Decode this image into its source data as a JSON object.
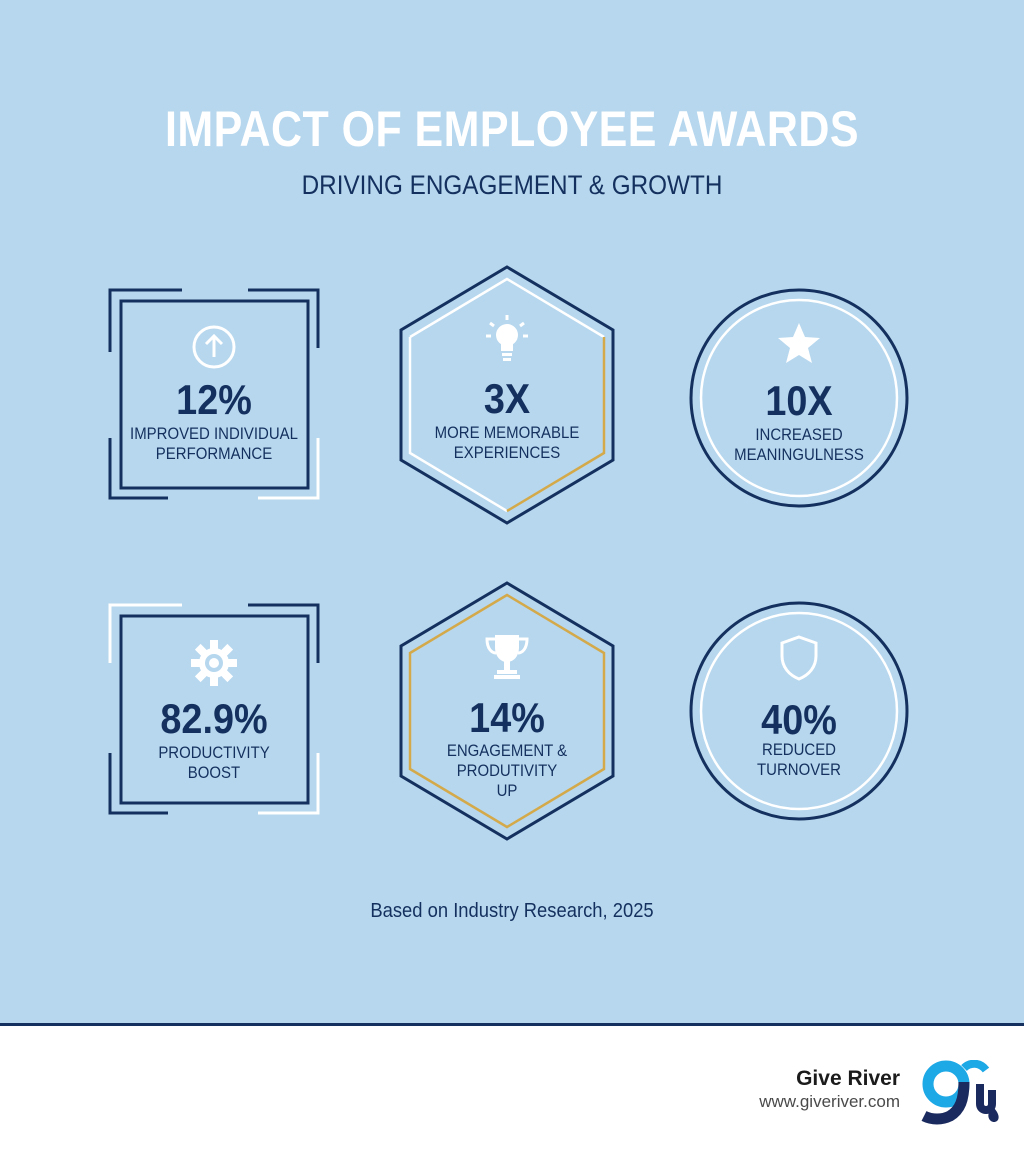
{
  "header": {
    "title": "IMPACT OF EMPLOYEE AWARDS",
    "subtitle": "DRIVING ENGAGEMENT & GROWTH"
  },
  "stats": [
    {
      "value": "12%",
      "label_line1": "IMPROVED INDIVIDUAL",
      "label_line2": "PERFORMANCE",
      "shape": "square",
      "icon": "arrow-up-icon"
    },
    {
      "value": "3X",
      "label_line1": "MORE MEMORABLE",
      "label_line2": "EXPERIENCES",
      "shape": "hexagon",
      "icon": "lightbulb-icon"
    },
    {
      "value": "10X",
      "label_line1": "INCREASED",
      "label_line2": "MEANINGULNESS",
      "shape": "circle",
      "icon": "star-icon"
    },
    {
      "value": "82.9%",
      "label_line1": "PRODUCTIVITY",
      "label_line2": "BOOST",
      "shape": "square",
      "icon": "gear-icon"
    },
    {
      "value": "14%",
      "label_line1": "ENGAGEMENT &",
      "label_line2": "PRODUTIVITY",
      "label_line3": "UP",
      "shape": "hexagon",
      "icon": "trophy-icon"
    },
    {
      "value": "40%",
      "label_line1": "REDUCED",
      "label_line2": "TURNOVER",
      "shape": "circle",
      "icon": "shield-icon"
    }
  ],
  "footnote": "Based on Industry Research, 2025",
  "footer": {
    "brand_name": "Give River",
    "brand_url": "www.giveriver.com",
    "logo_icon": "give-river-logo-icon"
  },
  "colors": {
    "background": "#b6d7ee",
    "navy": "#14305e",
    "gold": "#d4a94a",
    "white": "#ffffff"
  }
}
